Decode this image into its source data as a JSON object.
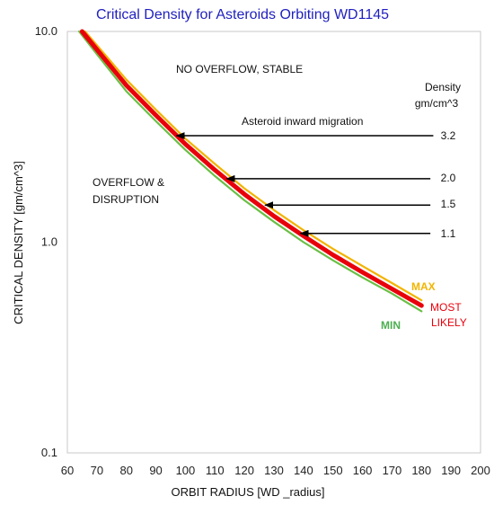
{
  "chart_data": {
    "type": "line",
    "title": "Critical Density for Asteroids Orbiting WD1145",
    "xlabel": "ORBIT RADIUS [WD _radius]",
    "ylabel": "CRITICAL DENSITY [gm/cm^3]",
    "xlim": [
      60,
      200
    ],
    "ylim": [
      0.1,
      10.0
    ],
    "yscale": "log",
    "grid": false,
    "xticks": [
      "60",
      "70",
      "80",
      "90",
      "100",
      "110",
      "120",
      "130",
      "140",
      "150",
      "160",
      "170",
      "180",
      "190",
      "200"
    ],
    "yticks": [
      "0.1",
      "1.0",
      "10.0"
    ],
    "series": [
      {
        "name": "MAX",
        "color": "#f2b400",
        "x": [
          66,
          70,
          80,
          90,
          100,
          110,
          120,
          130,
          140,
          150,
          160,
          170,
          180
        ],
        "y": [
          10.0,
          8.6,
          5.9,
          4.25,
          3.1,
          2.35,
          1.8,
          1.42,
          1.14,
          0.93,
          0.77,
          0.64,
          0.53
        ]
      },
      {
        "name": "MOST LIKELY",
        "color": "#e8000b",
        "x": [
          65,
          70,
          80,
          90,
          100,
          110,
          120,
          130,
          140,
          150,
          160,
          170,
          180
        ],
        "y": [
          10.0,
          8.2,
          5.55,
          4.0,
          2.92,
          2.2,
          1.69,
          1.33,
          1.07,
          0.87,
          0.72,
          0.6,
          0.5
        ]
      },
      {
        "name": "MIN",
        "color": "#6abf45",
        "x": [
          64,
          70,
          80,
          90,
          100,
          110,
          120,
          130,
          140,
          150,
          160,
          170,
          180
        ],
        "y": [
          10.0,
          7.8,
          5.2,
          3.75,
          2.74,
          2.06,
          1.58,
          1.25,
          1.0,
          0.82,
          0.68,
          0.57,
          0.47
        ]
      }
    ],
    "annotations": {
      "region_top": "NO OVERFLOW, STABLE",
      "region_left": [
        "OVERFLOW &",
        "DISRUPTION"
      ],
      "migration_label": "Asteroid inward migration",
      "density_header": [
        "Density",
        "gm/cm^3"
      ],
      "arrows": [
        {
          "density": 3.2,
          "label": "3.2",
          "x_to": 97,
          "x_from": 184
        },
        {
          "density": 2.0,
          "label": "2.0",
          "x_to": 114,
          "x_from": 183
        },
        {
          "density": 1.5,
          "label": "1.5",
          "x_to": 127,
          "x_from": 183
        },
        {
          "density": 1.1,
          "label": "1.1",
          "x_to": 139,
          "x_from": 183
        }
      ]
    }
  }
}
